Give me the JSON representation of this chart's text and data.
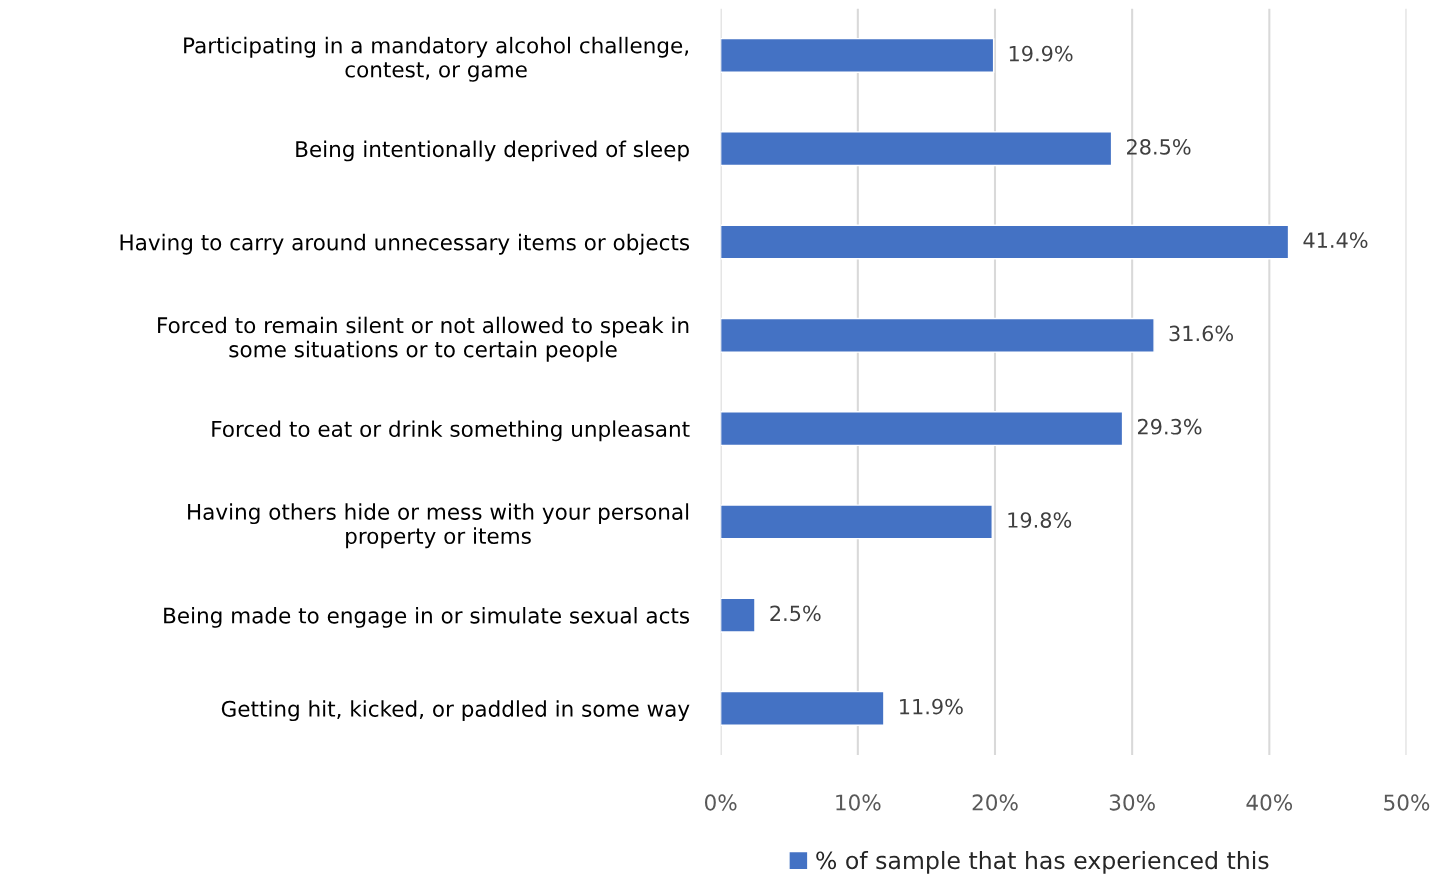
{
  "chart_data": {
    "type": "bar",
    "orientation": "horizontal",
    "categories": [
      "Participating in a mandatory alcohol challenge,\ncontest, or game",
      "Being intentionally deprived of sleep",
      "Having to carry around unnecessary items or objects",
      "Forced to remain silent or not allowed to speak in\nsome situations or to certain people",
      "Forced to eat or drink something unpleasant",
      "Having others hide or mess with your personal\nproperty or items",
      "Being made to engage in or simulate sexual acts",
      "Getting hit, kicked, or paddled in some way"
    ],
    "series": [
      {
        "name": "% of sample that has experienced this",
        "color": "#4472c4",
        "values": [
          19.9,
          28.5,
          41.4,
          31.6,
          29.3,
          19.8,
          2.5,
          11.9
        ],
        "value_labels": [
          "19.9%",
          "28.5%",
          "41.4%",
          "31.6%",
          "29.3%",
          "19.8%",
          "2.5%",
          "11.9%"
        ]
      }
    ],
    "xlim": [
      0,
      50
    ],
    "xticks": [
      {
        "value": 0,
        "label": "0%"
      },
      {
        "value": 10,
        "label": "10%"
      },
      {
        "value": 20,
        "label": "20%"
      },
      {
        "value": 30,
        "label": "30%"
      },
      {
        "value": 40,
        "label": "40%"
      },
      {
        "value": 50,
        "label": "50%"
      }
    ],
    "grid": "x",
    "legend": "bottom"
  }
}
